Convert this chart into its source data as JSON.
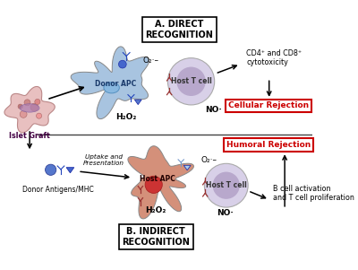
{
  "bg_color": "#ffffff",
  "panel_a_title": "A. DIRECT\nRECOGNITION",
  "panel_b_title": "B. INDIRECT\nRECOGNITION",
  "cellular_rejection": "Cellular Rejection",
  "humoral_rejection": "Humoral Rejection",
  "donor_apc_label": "Donor APC",
  "host_t_cell_label_a": "Host T cell",
  "host_apc_label": "Host APC",
  "host_t_cell_label_b": "Host T cell",
  "islet_graft_label": "Islet Graft",
  "donor_antigens_label": "Donor Antigens/MHC",
  "uptake_label": "Uptake and\nPresentation",
  "o2_label_a": "O₂·–",
  "h2o2_label_a": "H₂O₂",
  "no_label_a": "NO·",
  "o2_label_b": "O₂·–",
  "h2o2_label_b": "H₂O₂",
  "no_label_b": "NO·",
  "cd4_cd8_label": "CD4⁺ and CD8⁺\ncytotoxicity",
  "bcell_label": "B cell activation\nand T cell proliferation",
  "donor_apc_color": "#a8c4e0",
  "host_apc_color": "#d4907a",
  "t_cell_color_outer": "#d8d0e8",
  "t_cell_color_inner": "#b8a8cc",
  "islet_color": "#e8c8c8",
  "blue_dark": "#1a3a6b",
  "red_rejection": "#cc0000",
  "arrow_color": "#000000",
  "line_color": "#555555",
  "blue_symbol": "#3355bb",
  "red_receptor": "#993333"
}
